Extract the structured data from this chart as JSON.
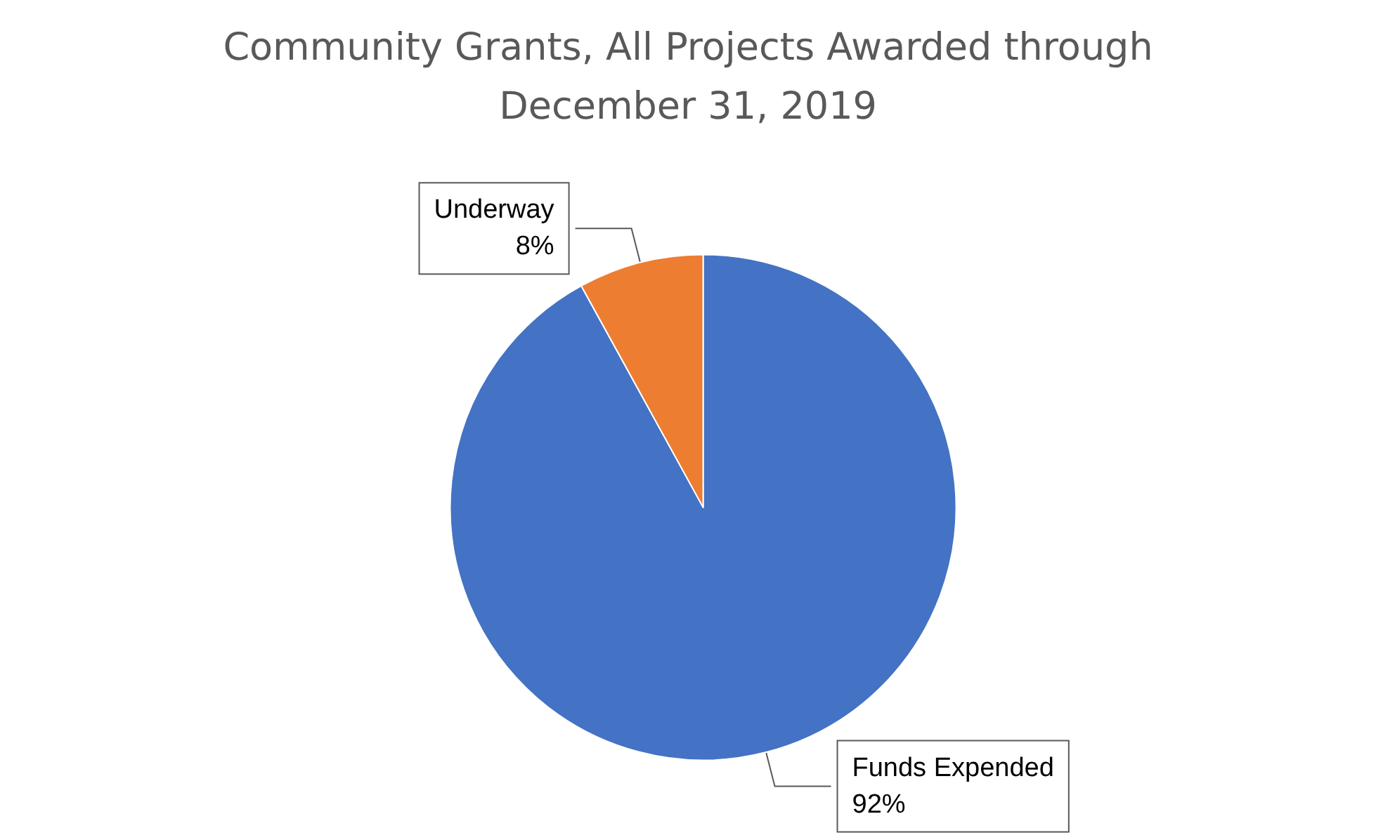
{
  "chart_data": {
    "type": "pie",
    "title": "Community Grants, All Projects Awarded through\nDecember 31, 2019",
    "categories": [
      "Funds Expended",
      "Underway"
    ],
    "values": [
      92,
      8
    ],
    "value_labels": [
      "92%",
      "8%"
    ],
    "colors": [
      "#4472c4",
      "#ed7d31"
    ],
    "legend": false
  }
}
